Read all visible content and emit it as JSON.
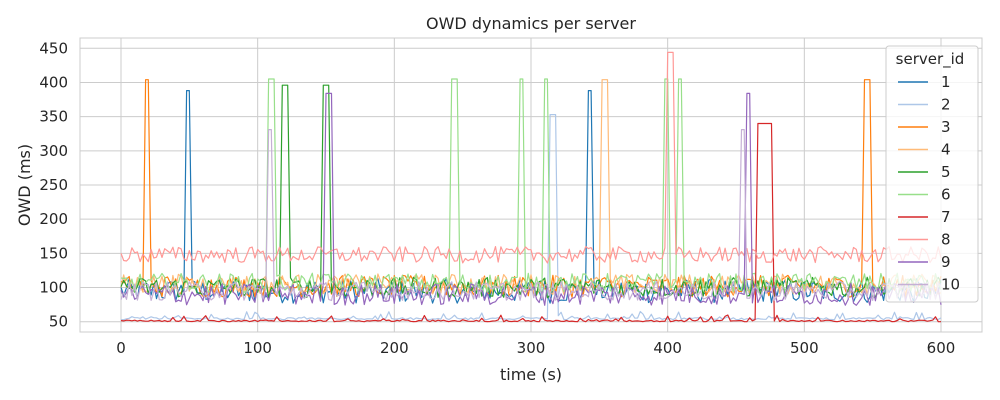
{
  "chart_data": {
    "type": "line",
    "title": "OWD dynamics per server",
    "xlabel": "time (s)",
    "ylabel": "OWD (ms)",
    "xlim": [
      -30,
      630
    ],
    "ylim": [
      35,
      465
    ],
    "x_ticks": [
      0,
      100,
      200,
      300,
      400,
      500,
      600
    ],
    "x_tick_labels": [
      "0",
      "100",
      "200",
      "300",
      "400",
      "500",
      "600"
    ],
    "y_ticks": [
      50,
      100,
      150,
      200,
      250,
      300,
      350,
      400,
      450
    ],
    "y_tick_labels": [
      "50",
      "100",
      "150",
      "200",
      "250",
      "300",
      "350",
      "400",
      "450"
    ],
    "grid": true,
    "legend": {
      "title": "server_id",
      "position": "top-right"
    },
    "x_step": 2,
    "x_range": [
      0,
      600
    ],
    "series": [
      {
        "name": "1",
        "color": "#1f77b4",
        "base": 95,
        "noise": 18,
        "spikes": [
          [
            48,
            51,
            388
          ],
          [
            342,
            345,
            388
          ]
        ]
      },
      {
        "name": "2",
        "color": "#aec7e8",
        "base": 55,
        "noise": 5,
        "spikes": [
          [
            314,
            318,
            353
          ]
        ]
      },
      {
        "name": "3",
        "color": "#ff7f0e",
        "base": 102,
        "noise": 16,
        "spikes": [
          [
            17,
            21,
            404
          ],
          [
            544,
            548,
            404
          ]
        ]
      },
      {
        "name": "4",
        "color": "#ffbb78",
        "base": 105,
        "noise": 15,
        "spikes": [
          [
            352,
            356,
            404
          ]
        ]
      },
      {
        "name": "5",
        "color": "#2ca02c",
        "base": 100,
        "noise": 15,
        "spikes": [
          [
            118,
            122,
            396
          ],
          [
            148,
            152,
            396
          ]
        ]
      },
      {
        "name": "6",
        "color": "#98df8a",
        "base": 107,
        "noise": 14,
        "spikes": [
          [
            108,
            112,
            405
          ],
          [
            242,
            246,
            405
          ],
          [
            291,
            295,
            405
          ],
          [
            309,
            313,
            405
          ],
          [
            397,
            401,
            405
          ],
          [
            407,
            411,
            405
          ]
        ]
      },
      {
        "name": "7",
        "color": "#d62728",
        "base": 52,
        "noise": 4,
        "spikes": [
          [
            466,
            470,
            340
          ],
          [
            472,
            477,
            340
          ]
        ]
      },
      {
        "name": "8",
        "color": "#ff9896",
        "base": 148,
        "noise": 12,
        "spikes": [
          [
            400,
            405,
            444
          ]
        ]
      },
      {
        "name": "9",
        "color": "#9467bd",
        "base": 90,
        "noise": 16,
        "spikes": [
          [
            150,
            154,
            384
          ],
          [
            457,
            461,
            384
          ]
        ]
      },
      {
        "name": "10",
        "color": "#c5b0d5",
        "base": 95,
        "noise": 14,
        "spikes": [
          [
            108,
            111,
            331
          ],
          [
            454,
            457,
            331
          ]
        ]
      }
    ]
  }
}
